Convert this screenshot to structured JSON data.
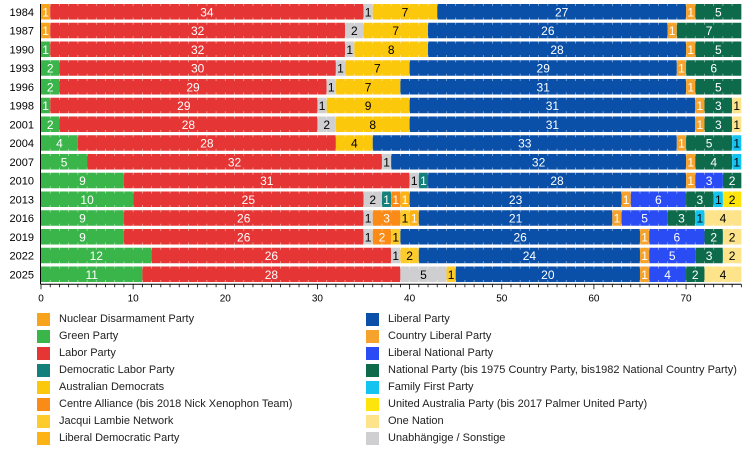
{
  "chart_data": {
    "type": "bar",
    "orientation": "horizontal-stacked",
    "title": "",
    "xlabel": "",
    "ylabel": "",
    "xlim": [
      0,
      76
    ],
    "xticks": [
      0,
      10,
      20,
      30,
      40,
      50,
      60,
      70
    ],
    "grid": false,
    "legend_position": "bottom",
    "parties": {
      "ND": {
        "name": "Nuclear Disarmament Party",
        "color": "#f7a31c",
        "text": "#ffffff"
      },
      "GRN": {
        "name": "Green Party",
        "color": "#3ab54a",
        "text": "#ffffff"
      },
      "ALP": {
        "name": "Labor Party",
        "color": "#e53535",
        "text": "#ffffff"
      },
      "DLP": {
        "name": "Democratic Labor Party",
        "color": "#13807c",
        "text": "#ffffff"
      },
      "DEM": {
        "name": "Australian Democrats",
        "color": "#fcc80c",
        "text": "#000000"
      },
      "CA": {
        "name": "Centre Alliance (bis 2018 Nick Xenophon Team)",
        "color": "#fb8b17",
        "text": "#ffffff"
      },
      "JLN": {
        "name": "Jacqui Lambie Network",
        "color": "#fdcb2c",
        "text": "#000000"
      },
      "LDP": {
        "name": "Liberal Democratic Party",
        "color": "#fdb216",
        "text": "#ffffff"
      },
      "LIB": {
        "name": "Liberal Party",
        "color": "#0a4fa8",
        "text": "#ffffff"
      },
      "CLP": {
        "name": "Country Liberal Party",
        "color": "#f6a32e",
        "text": "#ffffff"
      },
      "LNP": {
        "name": "Liberal National Party",
        "color": "#2a4cf4",
        "text": "#ffffff"
      },
      "NAT": {
        "name": "National Party (bis 1975 Country Party, bis1982 National Country Party)",
        "color": "#0d6b4c",
        "text": "#ffffff"
      },
      "FF": {
        "name": "Family First Party",
        "color": "#13c3f0",
        "text": "#000000"
      },
      "UAP": {
        "name": "United Australia Party (bis 2017 Palmer United Party)",
        "color": "#fde50b",
        "text": "#000000"
      },
      "ON": {
        "name": "One Nation",
        "color": "#fde38a",
        "text": "#000000"
      },
      "IND": {
        "name": "Unabhängige / Sonstige",
        "color": "#cfcfd1",
        "text": "#000000"
      }
    },
    "legend_order": [
      [
        "ND",
        "GRN",
        "ALP",
        "DLP",
        "DEM",
        "CA",
        "JLN",
        "LDP"
      ],
      [
        "LIB",
        "CLP",
        "LNP",
        "NAT",
        "FF",
        "UAP",
        "ON",
        "IND"
      ]
    ],
    "categories": [
      "1984",
      "1987",
      "1990",
      "1993",
      "1996",
      "1998",
      "2001",
      "2004",
      "2007",
      "2010",
      "2013",
      "2016",
      "2019",
      "2022",
      "2025"
    ],
    "rows": [
      {
        "year": "1984",
        "segments": [
          [
            "ND",
            1
          ],
          [
            "ALP",
            34
          ],
          [
            "IND",
            1
          ],
          [
            "DEM",
            7
          ],
          [
            "LIB",
            27
          ],
          [
            "CLP",
            1
          ],
          [
            "NAT",
            5
          ]
        ]
      },
      {
        "year": "1987",
        "segments": [
          [
            "ND",
            1
          ],
          [
            "ALP",
            32
          ],
          [
            "IND",
            2
          ],
          [
            "DEM",
            7
          ],
          [
            "LIB",
            26
          ],
          [
            "CLP",
            1
          ],
          [
            "NAT",
            7
          ]
        ]
      },
      {
        "year": "1990",
        "segments": [
          [
            "GRN",
            1
          ],
          [
            "ALP",
            32
          ],
          [
            "IND",
            1
          ],
          [
            "DEM",
            8
          ],
          [
            "LIB",
            28
          ],
          [
            "CLP",
            1
          ],
          [
            "NAT",
            5
          ]
        ]
      },
      {
        "year": "1993",
        "segments": [
          [
            "GRN",
            2
          ],
          [
            "ALP",
            30
          ],
          [
            "IND",
            1
          ],
          [
            "DEM",
            7
          ],
          [
            "LIB",
            29
          ],
          [
            "CLP",
            1
          ],
          [
            "NAT",
            6
          ]
        ]
      },
      {
        "year": "1996",
        "segments": [
          [
            "GRN",
            2
          ],
          [
            "ALP",
            29
          ],
          [
            "IND",
            1
          ],
          [
            "DEM",
            7
          ],
          [
            "LIB",
            31
          ],
          [
            "CLP",
            1
          ],
          [
            "NAT",
            5
          ]
        ]
      },
      {
        "year": "1998",
        "segments": [
          [
            "GRN",
            1
          ],
          [
            "ALP",
            29
          ],
          [
            "IND",
            1
          ],
          [
            "DEM",
            9
          ],
          [
            "LIB",
            31
          ],
          [
            "CLP",
            1
          ],
          [
            "NAT",
            3
          ],
          [
            "ON",
            1
          ]
        ]
      },
      {
        "year": "2001",
        "segments": [
          [
            "GRN",
            2
          ],
          [
            "ALP",
            28
          ],
          [
            "IND",
            2
          ],
          [
            "DEM",
            8
          ],
          [
            "LIB",
            31
          ],
          [
            "CLP",
            1
          ],
          [
            "NAT",
            3
          ],
          [
            "ON",
            1
          ]
        ]
      },
      {
        "year": "2004",
        "segments": [
          [
            "GRN",
            4
          ],
          [
            "ALP",
            28
          ],
          [
            "DEM",
            4
          ],
          [
            "LIB",
            33
          ],
          [
            "CLP",
            1
          ],
          [
            "NAT",
            5
          ],
          [
            "FF",
            1
          ]
        ]
      },
      {
        "year": "2007",
        "segments": [
          [
            "GRN",
            5
          ],
          [
            "ALP",
            32
          ],
          [
            "IND",
            1
          ],
          [
            "LIB",
            32
          ],
          [
            "CLP",
            1
          ],
          [
            "NAT",
            4
          ],
          [
            "FF",
            1
          ]
        ]
      },
      {
        "year": "2010",
        "segments": [
          [
            "GRN",
            9
          ],
          [
            "ALP",
            31
          ],
          [
            "IND",
            1
          ],
          [
            "DLP",
            1
          ],
          [
            "LIB",
            28
          ],
          [
            "CLP",
            1
          ],
          [
            "LNP",
            3
          ],
          [
            "NAT",
            2
          ]
        ]
      },
      {
        "year": "2013",
        "segments": [
          [
            "GRN",
            10
          ],
          [
            "ALP",
            25
          ],
          [
            "IND",
            2
          ],
          [
            "DLP",
            1
          ],
          [
            "CA",
            1
          ],
          [
            "LDP",
            1
          ],
          [
            "LIB",
            23
          ],
          [
            "CLP",
            1
          ],
          [
            "LNP",
            6
          ],
          [
            "NAT",
            3
          ],
          [
            "FF",
            1
          ],
          [
            "UAP",
            2
          ]
        ]
      },
      {
        "year": "2016",
        "segments": [
          [
            "GRN",
            9
          ],
          [
            "ALP",
            26
          ],
          [
            "IND",
            1
          ],
          [
            "CA",
            3
          ],
          [
            "JLN",
            1
          ],
          [
            "LDP",
            1
          ],
          [
            "LIB",
            21
          ],
          [
            "CLP",
            1
          ],
          [
            "LNP",
            5
          ],
          [
            "NAT",
            3
          ],
          [
            "FF",
            1
          ],
          [
            "ON",
            4
          ]
        ]
      },
      {
        "year": "2019",
        "segments": [
          [
            "GRN",
            9
          ],
          [
            "ALP",
            26
          ],
          [
            "IND",
            1
          ],
          [
            "CA",
            2
          ],
          [
            "JLN",
            1
          ],
          [
            "LIB",
            26
          ],
          [
            "CLP",
            1
          ],
          [
            "LNP",
            6
          ],
          [
            "NAT",
            2
          ],
          [
            "ON",
            2
          ]
        ]
      },
      {
        "year": "2022",
        "segments": [
          [
            "GRN",
            12
          ],
          [
            "ALP",
            26
          ],
          [
            "IND",
            1
          ],
          [
            "JLN",
            2
          ],
          [
            "LIB",
            24
          ],
          [
            "CLP",
            1
          ],
          [
            "LNP",
            5
          ],
          [
            "NAT",
            3
          ],
          [
            "ON",
            2
          ]
        ]
      },
      {
        "year": "2025",
        "segments": [
          [
            "GRN",
            11
          ],
          [
            "ALP",
            28
          ],
          [
            "IND",
            5
          ],
          [
            "JLN",
            1
          ],
          [
            "LIB",
            20
          ],
          [
            "CLP",
            1
          ],
          [
            "LNP",
            4
          ],
          [
            "NAT",
            2
          ],
          [
            "ON",
            4
          ]
        ]
      }
    ]
  }
}
